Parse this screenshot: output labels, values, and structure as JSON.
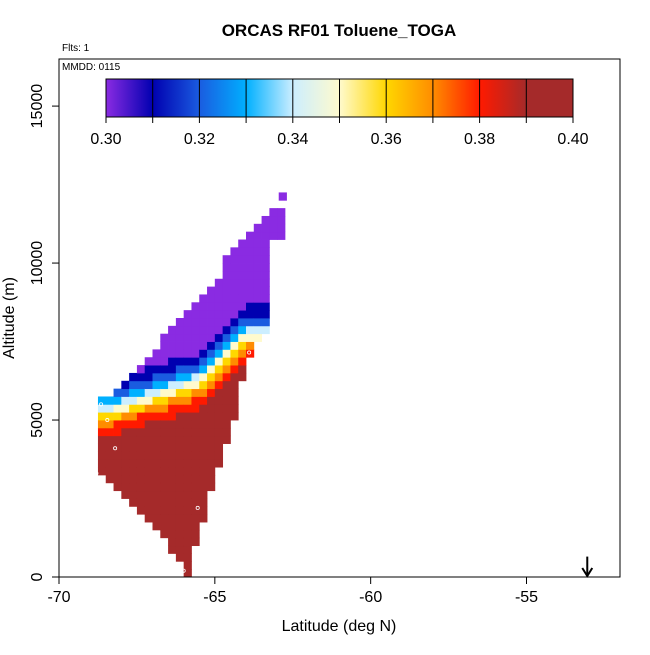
{
  "header": {
    "flights": "Flts: 1",
    "date": "MMDD: 0115"
  },
  "chart_data": {
    "type": "heatmap",
    "title": "ORCAS RF01 Toluene_TOGA",
    "xlabel": "Latitude (deg N)",
    "ylabel": "Altitude (m)",
    "xlim": [
      -70,
      -52
    ],
    "ylim": [
      0,
      16500
    ],
    "x_ticks": [
      -70,
      -65,
      -60,
      -55
    ],
    "y_ticks": [
      0,
      5000,
      10000,
      15000
    ],
    "x_tick_labels": [
      "-70",
      "-65",
      "-60",
      "-55"
    ],
    "y_tick_labels": [
      "0",
      "5000",
      "10000",
      "15000"
    ],
    "colorbar": {
      "range": [
        0.3,
        0.4
      ],
      "bins": 10,
      "tick_labels": [
        "0.30",
        "0.32",
        "0.34",
        "0.36",
        "0.38",
        "0.40"
      ],
      "bin_colors": [
        "#8a2be2",
        "#0000b0",
        "#1a5ce0",
        "#00b0ff",
        "#cceeff",
        "#fffacd",
        "#ffd700",
        "#ff8c00",
        "#ff1a00",
        "#a52a2a"
      ]
    },
    "grid_cell": {
      "dlat": 0.25,
      "dalt": 250
    },
    "columns": [
      {
        "lat": -68.75,
        "bottom": 3250,
        "top": 5750
      },
      {
        "lat": -68.5,
        "bottom": 3000,
        "top": 5750
      },
      {
        "lat": -68.25,
        "bottom": 2750,
        "top": 6000
      },
      {
        "lat": -68.0,
        "bottom": 2500,
        "top": 6250
      },
      {
        "lat": -67.75,
        "bottom": 2250,
        "top": 6500
      },
      {
        "lat": -67.5,
        "bottom": 2000,
        "top": 6750
      },
      {
        "lat": -67.25,
        "bottom": 1750,
        "top": 7000
      },
      {
        "lat": -67.0,
        "bottom": 1500,
        "top": 7250
      },
      {
        "lat": -66.75,
        "bottom": 1250,
        "top": 7750
      },
      {
        "lat": -66.5,
        "bottom": 750,
        "top": 8000
      },
      {
        "lat": -66.25,
        "bottom": 500,
        "top": 8250
      },
      {
        "lat": -66.0,
        "bottom": 0,
        "top": 8500
      },
      {
        "lat": -65.75,
        "bottom": 1000,
        "top": 8750
      },
      {
        "lat": -65.5,
        "bottom": 1750,
        "top": 9000
      },
      {
        "lat": -65.25,
        "bottom": 2750,
        "top": 9250
      },
      {
        "lat": -65.0,
        "bottom": 3500,
        "top": 9500
      },
      {
        "lat": -64.75,
        "bottom": 4250,
        "top": 10250
      },
      {
        "lat": -64.5,
        "bottom": 5000,
        "top": 10500
      },
      {
        "lat": -64.25,
        "bottom": 6250,
        "top": 10750
      },
      {
        "lat": -64.0,
        "bottom": 7000,
        "top": 11000
      },
      {
        "lat": -63.75,
        "bottom": 7500,
        "top": 11250
      },
      {
        "lat": -63.5,
        "bottom": 7750,
        "top": 11500
      },
      {
        "lat": -63.25,
        "bottom": 10750,
        "top": 11750
      },
      {
        "lat": -63.0,
        "bottom": 10750,
        "top": 11750
      }
    ],
    "extra_cells": [
      {
        "lat": -62.95,
        "alt": 12000,
        "value": 0.3
      }
    ],
    "value_model": {
      "boundary_alt_at_lat": [
        [
          -68.75,
          5250
        ],
        [
          -65.5,
          6250
        ],
        [
          -64.5,
          7250
        ],
        [
          -64.0,
          7750
        ]
      ],
      "transition_width_m": 900,
      "low_value": 0.401,
      "high_value": 0.3
    },
    "flight_track_points": [
      {
        "lat": -68.65,
        "alt": 5500
      },
      {
        "lat": -68.45,
        "alt": 5000
      },
      {
        "lat": -68.2,
        "alt": 4100
      },
      {
        "lat": -68.8,
        "alt": 3300
      },
      {
        "lat": -66.0,
        "alt": 200
      },
      {
        "lat": -65.55,
        "alt": 2200
      },
      {
        "lat": -63.9,
        "alt": 7150
      }
    ],
    "arrow_marker": {
      "lat": -53.05,
      "alt_top": 650,
      "alt_bottom": 0
    },
    "grid": false,
    "legend": "colorbar top-inside"
  }
}
